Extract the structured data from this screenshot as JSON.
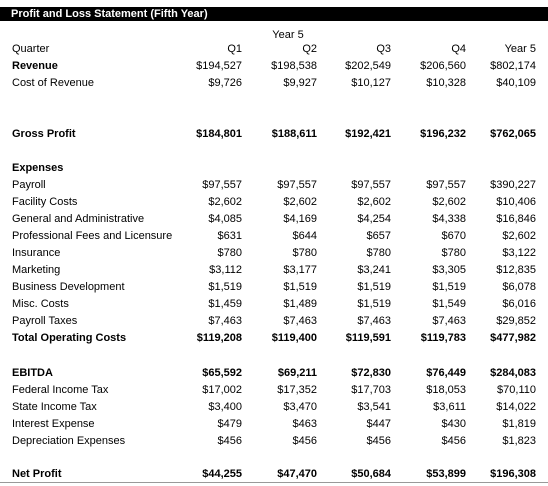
{
  "title": "Profit and Loss Statement (Fifth Year)",
  "year_header": "Year 5",
  "header_row": {
    "label": "Quarter",
    "values": [
      "Q1",
      "Q2",
      "Q3",
      "Q4",
      "Year 5"
    ]
  },
  "revenue": {
    "label": "Revenue",
    "values": [
      "$194,527",
      "$198,538",
      "$202,549",
      "$206,560",
      "$802,174"
    ]
  },
  "cost_of_revenue": {
    "label": "Cost of Revenue",
    "values": [
      "$9,726",
      "$9,927",
      "$10,127",
      "$10,328",
      "$40,109"
    ]
  },
  "gross_profit": {
    "label": "Gross Profit",
    "values": [
      "$184,801",
      "$188,611",
      "$192,421",
      "$196,232",
      "$762,065"
    ]
  },
  "expenses_heading": "Expenses",
  "expenses": [
    {
      "label": "Payroll",
      "values": [
        "$97,557",
        "$97,557",
        "$97,557",
        "$97,557",
        "$390,227"
      ]
    },
    {
      "label": "Facility Costs",
      "values": [
        "$2,602",
        "$2,602",
        "$2,602",
        "$2,602",
        "$10,406"
      ]
    },
    {
      "label": "General and Administrative",
      "values": [
        "$4,085",
        "$4,169",
        "$4,254",
        "$4,338",
        "$16,846"
      ]
    },
    {
      "label": "Professional Fees and Licensure",
      "values": [
        "$631",
        "$644",
        "$657",
        "$670",
        "$2,602"
      ]
    },
    {
      "label": "Insurance",
      "values": [
        "$780",
        "$780",
        "$780",
        "$780",
        "$3,122"
      ]
    },
    {
      "label": "Marketing",
      "values": [
        "$3,112",
        "$3,177",
        "$3,241",
        "$3,305",
        "$12,835"
      ]
    },
    {
      "label": "Business Development",
      "values": [
        "$1,519",
        "$1,519",
        "$1,519",
        "$1,519",
        "$6,078"
      ]
    },
    {
      "label": "Misc. Costs",
      "values": [
        "$1,459",
        "$1,489",
        "$1,519",
        "$1,549",
        "$6,016"
      ]
    },
    {
      "label": "Payroll Taxes",
      "values": [
        "$7,463",
        "$7,463",
        "$7,463",
        "$7,463",
        "$29,852"
      ]
    }
  ],
  "total_operating_costs": {
    "label": "Total Operating Costs",
    "values": [
      "$119,208",
      "$119,400",
      "$119,591",
      "$119,783",
      "$477,982"
    ]
  },
  "ebitda": {
    "label": "EBITDA",
    "values": [
      "$65,592",
      "$69,211",
      "$72,830",
      "$76,449",
      "$284,083"
    ]
  },
  "below_ebitda": [
    {
      "label": "Federal Income Tax",
      "values": [
        "$17,002",
        "$17,352",
        "$17,703",
        "$18,053",
        "$70,110"
      ]
    },
    {
      "label": "State Income Tax",
      "values": [
        "$3,400",
        "$3,470",
        "$3,541",
        "$3,611",
        "$14,022"
      ]
    },
    {
      "label": "Interest Expense",
      "values": [
        "$479",
        "$463",
        "$447",
        "$430",
        "$1,819"
      ]
    },
    {
      "label": "Depreciation Expenses",
      "values": [
        "$456",
        "$456",
        "$456",
        "$456",
        "$1,823"
      ]
    }
  ],
  "net_profit": {
    "label": "Net Profit",
    "values": [
      "$44,255",
      "$47,470",
      "$50,684",
      "$53,899",
      "$196,308"
    ]
  }
}
